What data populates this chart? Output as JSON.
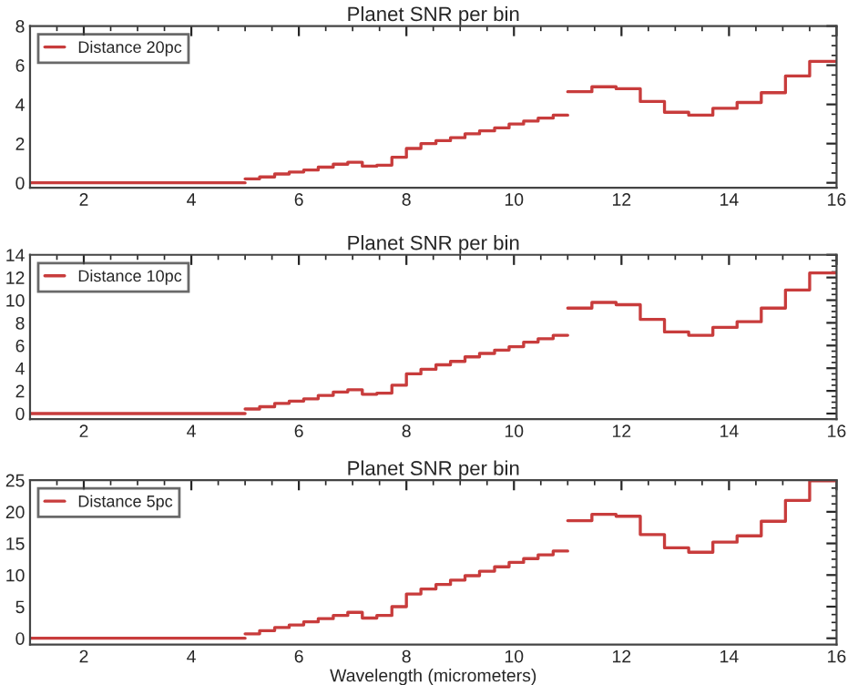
{
  "chart_data": [
    {
      "type": "step",
      "title": "Planet SNR per bin",
      "xlim": [
        1,
        16
      ],
      "xticks": [
        2,
        4,
        6,
        8,
        10,
        12,
        14,
        16
      ],
      "ylim": [
        -0.25,
        8
      ],
      "yticks": [
        0,
        2,
        4,
        6,
        8
      ],
      "legend": "top left",
      "grid": false,
      "series": [
        {
          "name": "Distance 20pc",
          "color": "#c83c3c",
          "x": [
            1,
            5
          ],
          "values": [
            0,
            0
          ]
        },
        {
          "color": "#c83c3c",
          "x": [
            5,
            5.27,
            5.55,
            5.82,
            6.09,
            6.36,
            6.64,
            6.91,
            7.18,
            7.45,
            7.73,
            8.0,
            8.27,
            8.55,
            8.82,
            9.09,
            9.36,
            9.64,
            9.91,
            10.18,
            10.45,
            10.73,
            11
          ],
          "values": [
            0.2,
            0.3,
            0.45,
            0.55,
            0.65,
            0.8,
            0.95,
            1.05,
            0.85,
            0.9,
            1.3,
            1.75,
            2.0,
            2.15,
            2.3,
            2.5,
            2.65,
            2.8,
            3.0,
            3.15,
            3.3,
            3.45,
            3.45
          ]
        },
        {
          "color": "#c83c3c",
          "x": [
            11,
            11.45,
            11.9,
            12.35,
            12.8,
            13.25,
            13.7,
            14.15,
            14.6,
            15.05,
            15.5,
            16
          ],
          "values": [
            4.65,
            4.9,
            4.8,
            4.15,
            3.6,
            3.45,
            3.8,
            4.1,
            4.6,
            5.45,
            6.2,
            6.2
          ]
        }
      ]
    },
    {
      "type": "step",
      "title": "Planet SNR per bin",
      "xlim": [
        1,
        16
      ],
      "xticks": [
        2,
        4,
        6,
        8,
        10,
        12,
        14,
        16
      ],
      "ylim": [
        -0.5,
        14
      ],
      "yticks": [
        0,
        2,
        4,
        6,
        8,
        10,
        12,
        14
      ],
      "legend": "top left",
      "grid": false,
      "series": [
        {
          "name": "Distance 10pc",
          "color": "#c83c3c",
          "x": [
            1,
            5
          ],
          "values": [
            0,
            0
          ]
        },
        {
          "color": "#c83c3c",
          "x": [
            5,
            5.27,
            5.55,
            5.82,
            6.09,
            6.36,
            6.64,
            6.91,
            7.18,
            7.45,
            7.73,
            8.0,
            8.27,
            8.55,
            8.82,
            9.09,
            9.36,
            9.64,
            9.91,
            10.18,
            10.45,
            10.73,
            11
          ],
          "values": [
            0.4,
            0.6,
            0.9,
            1.1,
            1.3,
            1.6,
            1.9,
            2.1,
            1.7,
            1.8,
            2.5,
            3.5,
            3.9,
            4.3,
            4.6,
            5.0,
            5.3,
            5.6,
            5.9,
            6.3,
            6.6,
            6.9,
            6.9
          ]
        },
        {
          "color": "#c83c3c",
          "x": [
            11,
            11.45,
            11.9,
            12.35,
            12.8,
            13.25,
            13.7,
            14.15,
            14.6,
            15.05,
            15.5,
            16
          ],
          "values": [
            9.3,
            9.8,
            9.6,
            8.3,
            7.2,
            6.9,
            7.6,
            8.1,
            9.3,
            10.9,
            12.4,
            12.4
          ]
        }
      ]
    },
    {
      "type": "step",
      "title": "Planet SNR per bin",
      "xlabel": "Wavelength (micrometers)",
      "xlim": [
        1,
        16
      ],
      "xticks": [
        2,
        4,
        6,
        8,
        10,
        12,
        14,
        16
      ],
      "ylim": [
        -1,
        25
      ],
      "yticks": [
        0,
        5,
        10,
        15,
        20,
        25
      ],
      "legend": "top left",
      "grid": false,
      "series": [
        {
          "name": "Distance 5pc",
          "color": "#c83c3c",
          "x": [
            1,
            5
          ],
          "values": [
            0,
            0
          ]
        },
        {
          "color": "#c83c3c",
          "x": [
            5,
            5.27,
            5.55,
            5.82,
            6.09,
            6.36,
            6.64,
            6.91,
            7.18,
            7.45,
            7.73,
            8.0,
            8.27,
            8.55,
            8.82,
            9.09,
            9.36,
            9.64,
            9.91,
            10.18,
            10.45,
            10.73,
            11
          ],
          "values": [
            0.7,
            1.2,
            1.7,
            2.1,
            2.6,
            3.1,
            3.6,
            4.1,
            3.2,
            3.6,
            5.0,
            7.0,
            7.8,
            8.5,
            9.2,
            9.9,
            10.6,
            11.3,
            12.0,
            12.6,
            13.2,
            13.8,
            13.8
          ]
        },
        {
          "color": "#c83c3c",
          "x": [
            11,
            11.45,
            11.9,
            12.35,
            12.8,
            13.25,
            13.7,
            14.15,
            14.6,
            15.05,
            15.5,
            16
          ],
          "values": [
            18.6,
            19.6,
            19.3,
            16.4,
            14.3,
            13.6,
            15.2,
            16.2,
            18.5,
            21.8,
            24.9,
            24.9
          ]
        }
      ]
    }
  ]
}
